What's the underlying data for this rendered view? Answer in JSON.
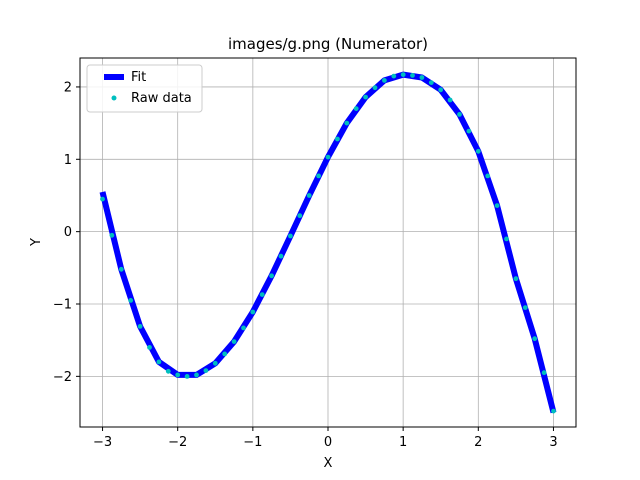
{
  "chart_data": {
    "type": "line",
    "title": "images/g.png (Numerator)",
    "xlabel": "X",
    "ylabel": "Y",
    "xlim": [
      -3.3,
      3.3
    ],
    "ylim": [
      -2.7,
      2.4
    ],
    "xticks": [
      -3,
      -2,
      -1,
      0,
      1,
      2,
      3
    ],
    "yticks": [
      -2,
      -1,
      0,
      1,
      2
    ],
    "xtick_labels": [
      "−3",
      "−2",
      "−1",
      "0",
      "1",
      "2",
      "3"
    ],
    "ytick_labels": [
      "−2",
      "−1",
      "0",
      "1",
      "2"
    ],
    "grid": true,
    "legend": {
      "placement": "top-left",
      "entries": [
        "Fit",
        "Raw data"
      ]
    },
    "series": [
      {
        "name": "Fit",
        "style": "line",
        "color": "#0000ff",
        "x": [
          -3.0,
          -2.75,
          -2.5,
          -2.25,
          -2.0,
          -1.75,
          -1.5,
          -1.25,
          -1.0,
          -0.75,
          -0.5,
          -0.25,
          0.0,
          0.25,
          0.5,
          0.75,
          1.0,
          1.25,
          1.5,
          1.75,
          2.0,
          2.25,
          2.5,
          2.75,
          3.0
        ],
        "y": [
          0.55,
          -0.52,
          -1.31,
          -1.8,
          -1.98,
          -1.98,
          -1.82,
          -1.52,
          -1.11,
          -0.61,
          -0.06,
          0.5,
          1.03,
          1.5,
          1.86,
          2.09,
          2.17,
          2.13,
          1.96,
          1.62,
          1.11,
          0.36,
          -0.65,
          -1.48,
          -2.5
        ]
      },
      {
        "name": "Raw data",
        "style": "points",
        "color": "#00bfbf",
        "x": [
          -3.0,
          -2.875,
          -2.75,
          -2.625,
          -2.5,
          -2.375,
          -2.25,
          -2.125,
          -2.0,
          -1.875,
          -1.75,
          -1.625,
          -1.5,
          -1.375,
          -1.25,
          -1.125,
          -1.0,
          -0.875,
          -0.75,
          -0.625,
          -0.5,
          -0.375,
          -0.25,
          -0.125,
          0.0,
          0.125,
          0.25,
          0.375,
          0.5,
          0.625,
          0.75,
          0.875,
          1.0,
          1.125,
          1.25,
          1.375,
          1.5,
          1.625,
          1.75,
          1.875,
          2.0,
          2.125,
          2.25,
          2.375,
          2.5,
          2.625,
          2.75,
          2.875,
          3.0
        ],
        "y": [
          0.45,
          -0.05,
          -0.52,
          -0.95,
          -1.31,
          -1.6,
          -1.8,
          -1.93,
          -1.98,
          -2.0,
          -1.98,
          -1.92,
          -1.82,
          -1.69,
          -1.52,
          -1.33,
          -1.11,
          -0.87,
          -0.61,
          -0.34,
          -0.06,
          0.22,
          0.5,
          0.77,
          1.03,
          1.28,
          1.5,
          1.7,
          1.86,
          1.99,
          2.09,
          2.15,
          2.17,
          2.16,
          2.13,
          2.06,
          1.96,
          1.82,
          1.62,
          1.39,
          1.11,
          0.77,
          0.36,
          -0.1,
          -0.65,
          -1.05,
          -1.48,
          -1.95,
          -2.48
        ]
      }
    ]
  }
}
